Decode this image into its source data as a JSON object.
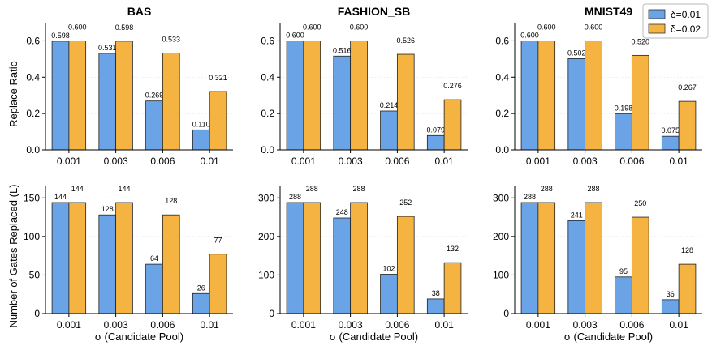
{
  "legend": [
    {
      "label": "δ=0.01",
      "color": "#6aa3e6"
    },
    {
      "label": "δ=0.02",
      "color": "#f5b342"
    }
  ],
  "row_ylabels": [
    "Replace Ratio",
    "Number of Gates Replaced (L)"
  ],
  "xlabel": "σ (Candidate Pool)",
  "chart_data": [
    {
      "type": "bar",
      "title": "BAS",
      "row": 0,
      "col": 0,
      "categories": [
        "0.001",
        "0.003",
        "0.006",
        "0.01"
      ],
      "series": [
        {
          "name": "δ=0.01",
          "values": [
            0.598,
            0.531,
            0.269,
            0.11
          ],
          "labels": [
            "0.598",
            "0.531",
            "0.269",
            "0.110"
          ]
        },
        {
          "name": "δ=0.02",
          "values": [
            0.6,
            0.598,
            0.533,
            0.321
          ],
          "labels": [
            "0.600",
            "0.598",
            "0.533",
            "0.321"
          ]
        }
      ],
      "ylim": [
        0,
        0.7
      ],
      "yticks": [
        0.0,
        0.2,
        0.4,
        0.6
      ],
      "ytick_labels": [
        "0.0",
        "0.2",
        "0.4",
        "0.6"
      ],
      "ylabel": "Replace Ratio",
      "xlabel": ""
    },
    {
      "type": "bar",
      "title": "FASHION_SB",
      "row": 0,
      "col": 1,
      "categories": [
        "0.001",
        "0.003",
        "0.006",
        "0.01"
      ],
      "series": [
        {
          "name": "δ=0.01",
          "values": [
            0.6,
            0.516,
            0.214,
            0.079
          ],
          "labels": [
            "0.600",
            "0.516",
            "0.214",
            "0.079"
          ]
        },
        {
          "name": "δ=0.02",
          "values": [
            0.6,
            0.6,
            0.526,
            0.276
          ],
          "labels": [
            "0.600",
            "0.600",
            "0.526",
            "0.276"
          ]
        }
      ],
      "ylim": [
        0,
        0.7
      ],
      "yticks": [
        0.0,
        0.2,
        0.4,
        0.6
      ],
      "ytick_labels": [
        "0.0",
        "0.2",
        "0.4",
        "0.6"
      ],
      "ylabel": "",
      "xlabel": ""
    },
    {
      "type": "bar",
      "title": "MNIST49",
      "row": 0,
      "col": 2,
      "categories": [
        "0.001",
        "0.003",
        "0.006",
        "0.01"
      ],
      "series": [
        {
          "name": "δ=0.01",
          "values": [
            0.6,
            0.502,
            0.198,
            0.075
          ],
          "labels": [
            "0.600",
            "0.502",
            "0.198",
            "0.075"
          ]
        },
        {
          "name": "δ=0.02",
          "values": [
            0.6,
            0.6,
            0.52,
            0.267
          ],
          "labels": [
            "0.600",
            "0.600",
            "0.520",
            "0.267"
          ]
        }
      ],
      "ylim": [
        0,
        0.7
      ],
      "yticks": [
        0.0,
        0.2,
        0.4,
        0.6
      ],
      "ytick_labels": [
        "0.0",
        "0.2",
        "0.4",
        "0.6"
      ],
      "ylabel": "",
      "xlabel": ""
    },
    {
      "type": "bar",
      "title": "",
      "row": 1,
      "col": 0,
      "categories": [
        "0.001",
        "0.003",
        "0.006",
        "0.01"
      ],
      "series": [
        {
          "name": "δ=0.01",
          "values": [
            144,
            128,
            64,
            26
          ],
          "labels": [
            "144",
            "128",
            "64",
            "26"
          ]
        },
        {
          "name": "δ=0.02",
          "values": [
            144,
            144,
            128,
            77
          ],
          "labels": [
            "144",
            "144",
            "128",
            "77"
          ]
        }
      ],
      "ylim": [
        0,
        165
      ],
      "yticks": [
        0,
        50,
        100,
        150
      ],
      "ytick_labels": [
        "0",
        "50",
        "100",
        "150"
      ],
      "ylabel": "Number of Gates Replaced (L)",
      "xlabel": "σ (Candidate Pool)"
    },
    {
      "type": "bar",
      "title": "",
      "row": 1,
      "col": 1,
      "categories": [
        "0.001",
        "0.003",
        "0.006",
        "0.01"
      ],
      "series": [
        {
          "name": "δ=0.01",
          "values": [
            288,
            248,
            102,
            38
          ],
          "labels": [
            "288",
            "248",
            "102",
            "38"
          ]
        },
        {
          "name": "δ=0.02",
          "values": [
            288,
            288,
            252,
            132
          ],
          "labels": [
            "288",
            "288",
            "252",
            "132"
          ]
        }
      ],
      "ylim": [
        0,
        330
      ],
      "yticks": [
        0,
        100,
        200,
        300
      ],
      "ytick_labels": [
        "0",
        "100",
        "200",
        "300"
      ],
      "ylabel": "",
      "xlabel": "σ (Candidate Pool)"
    },
    {
      "type": "bar",
      "title": "",
      "row": 1,
      "col": 2,
      "categories": [
        "0.001",
        "0.003",
        "0.006",
        "0.01"
      ],
      "series": [
        {
          "name": "δ=0.01",
          "values": [
            288,
            241,
            95,
            36
          ],
          "labels": [
            "288",
            "241",
            "95",
            "36"
          ]
        },
        {
          "name": "δ=0.02",
          "values": [
            288,
            288,
            250,
            128
          ],
          "labels": [
            "288",
            "288",
            "250",
            "128"
          ]
        }
      ],
      "ylim": [
        0,
        330
      ],
      "yticks": [
        0,
        100,
        200,
        300
      ],
      "ytick_labels": [
        "0",
        "100",
        "200",
        "300"
      ],
      "ylabel": "",
      "xlabel": "σ (Candidate Pool)"
    }
  ]
}
